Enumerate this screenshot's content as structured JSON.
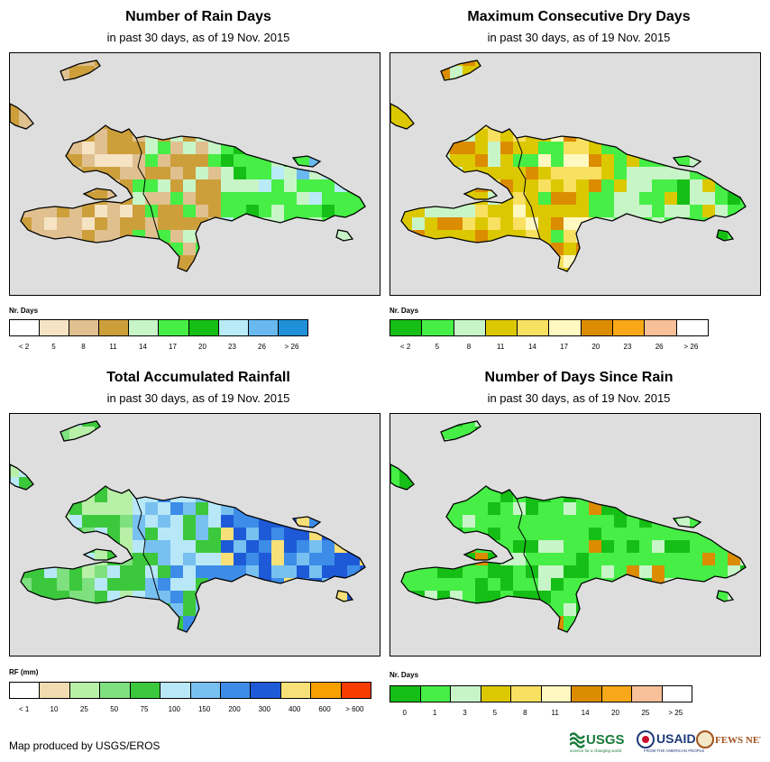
{
  "colors": {
    "ocean": "#dedede",
    "land": "#ffffff",
    "coast": "#000000"
  },
  "panels": [
    {
      "id": "rain-days",
      "title": "Number of Rain Days",
      "subtitle": "in past 30 days, as of 19 Nov. 2015",
      "legend_title": "Nr. Days",
      "legend_colors": [
        "#ffffff",
        "#f5e3c4",
        "#e0c08f",
        "#cc9f3a",
        "#c8f5c8",
        "#46ee46",
        "#16bf16",
        "#b8eaf8",
        "#6ab8f0",
        "#2090d8"
      ],
      "legend_labels": [
        "< 2",
        "5",
        "8",
        "11",
        "14",
        "17",
        "20",
        "23",
        "26",
        "> 26"
      ],
      "pattern": "P1"
    },
    {
      "id": "dry-days",
      "title": "Maximum Consecutive Dry Days",
      "subtitle": "in past 30 days, as of 19 Nov. 2015",
      "legend_title": "Nr. Days",
      "legend_colors": [
        "#16bf16",
        "#46ee46",
        "#c8f5c8",
        "#dcc800",
        "#f8e060",
        "#fff8c0",
        "#dc8c00",
        "#f8a818",
        "#f8c098",
        "#ffffff"
      ],
      "legend_labels": [
        "< 2",
        "5",
        "8",
        "11",
        "14",
        "17",
        "20",
        "23",
        "26",
        "> 26"
      ],
      "pattern": "P2"
    },
    {
      "id": "rainfall",
      "title": "Total Accumulated Rainfall",
      "subtitle": "in past 30 days, as of 19 Nov. 2015",
      "legend_title": "RF (mm)",
      "legend_colors": [
        "#ffffff",
        "#f0dcb0",
        "#b8f0a8",
        "#7ee07e",
        "#3cc83c",
        "#b8e8f8",
        "#78c0f0",
        "#3c8ce8",
        "#1e5ad8",
        "#f8e078",
        "#f8a000",
        "#f83c00"
      ],
      "legend_labels": [
        "< 1",
        "10",
        "25",
        "50",
        "75",
        "100",
        "150",
        "200",
        "300",
        "400",
        "600",
        "> 600"
      ],
      "pattern": "P3"
    },
    {
      "id": "days-since-rain",
      "title": "Number of Days Since Rain",
      "subtitle": "in past 30 days, as of 19 Nov. 2015",
      "legend_title": "Nr. Days",
      "legend_colors": [
        "#16bf16",
        "#46ee46",
        "#c8f5c8",
        "#dcc800",
        "#f8e060",
        "#fff8c0",
        "#dc8c00",
        "#f8a818",
        "#f8c098",
        "#ffffff"
      ],
      "legend_labels": [
        "0",
        "1",
        "3",
        "5",
        "8",
        "11",
        "14",
        "20",
        "25",
        "> 25"
      ],
      "pattern": "P4"
    }
  ],
  "credit": "Map produced by USGS/EROS",
  "logos": {
    "usgs": "USGS",
    "usgs_tagline": "science for a changing world",
    "usaid": "USAID",
    "usaid_tagline": "FROM THE AMERICAN PEOPLE",
    "fewsnet": "FEWS NET"
  }
}
